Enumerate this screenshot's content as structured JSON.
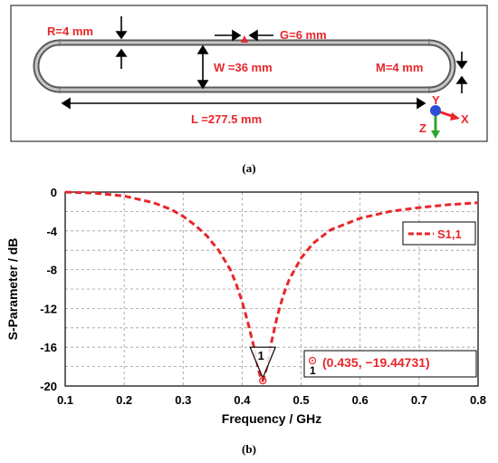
{
  "panel_a": {
    "caption": "(a)",
    "labels": {
      "r": "R=4 mm",
      "g": "G=6 mm",
      "w": "W =36 mm",
      "m": "M=4 mm",
      "l": "L =277.5 mm"
    },
    "axes": {
      "x": "X",
      "y": "Y",
      "z": "Z"
    },
    "colors": {
      "annotation": "#e8262b",
      "x_axis": "#e8262b",
      "y_axis": "#2a4fd6",
      "z_axis": "#2fa52f"
    }
  },
  "panel_b": {
    "caption": "(b)",
    "marker_label": "1",
    "readout": "(0.435, −19.44731)",
    "legend": "S1,1"
  },
  "chart_data": {
    "type": "line",
    "xlabel": "Frequency / GHz",
    "ylabel": "S-Parameter / dB",
    "xlim": [
      0.1,
      0.8
    ],
    "ylim": [
      -20,
      0
    ],
    "x_ticks": [
      "0.1",
      "0.2",
      "0.3",
      "0.4",
      "0.5",
      "0.6",
      "0.7",
      "0.8"
    ],
    "y_ticks": [
      "0",
      "-4",
      "-8",
      "-12",
      "-16",
      "-20"
    ],
    "grid": true,
    "legend_position": "top-right",
    "series": [
      {
        "name": "S1,1",
        "color": "#e8262b",
        "style": "dashed",
        "x": [
          0.1,
          0.15,
          0.2,
          0.25,
          0.28,
          0.3,
          0.32,
          0.34,
          0.36,
          0.38,
          0.39,
          0.4,
          0.41,
          0.42,
          0.425,
          0.43,
          0.435,
          0.44,
          0.445,
          0.45,
          0.46,
          0.47,
          0.48,
          0.5,
          0.52,
          0.55,
          0.6,
          0.65,
          0.7,
          0.75,
          0.8
        ],
        "y": [
          0.0,
          -0.1,
          -0.4,
          -1.1,
          -1.8,
          -2.5,
          -3.4,
          -4.5,
          -6.0,
          -8.0,
          -9.5,
          -11.3,
          -13.5,
          -16.0,
          -17.5,
          -18.9,
          -19.45,
          -18.5,
          -17.0,
          -15.4,
          -12.7,
          -10.6,
          -9.0,
          -6.8,
          -5.3,
          -3.9,
          -2.7,
          -2.0,
          -1.6,
          -1.3,
          -1.1
        ]
      }
    ],
    "marker": {
      "label": "1",
      "x": 0.435,
      "y": -19.44731
    }
  }
}
